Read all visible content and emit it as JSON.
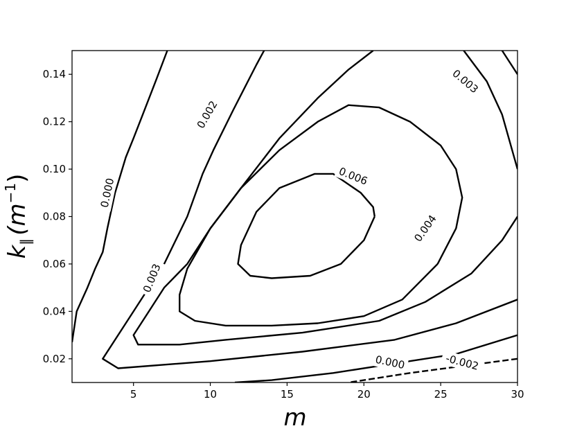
{
  "chart_data": {
    "type": "contour",
    "xlabel": "m",
    "ylabel_main": "k",
    "ylabel_sub": "∥",
    "ylabel_paren": "(m",
    "ylabel_sup": "−1",
    "ylabel_close": ")",
    "xlim": [
      1,
      30
    ],
    "ylim": [
      0.01,
      0.15
    ],
    "xticks": [
      5,
      10,
      15,
      20,
      25,
      30
    ],
    "xtick_labels": [
      "5",
      "10",
      "15",
      "20",
      "25",
      "30"
    ],
    "yticks": [
      0.02,
      0.04,
      0.06,
      0.08,
      0.1,
      0.12,
      0.14
    ],
    "ytick_labels": [
      "0.02",
      "0.04",
      "0.06",
      "0.08",
      "0.10",
      "0.12",
      "0.14"
    ],
    "grid": false,
    "contours": [
      {
        "level": "0.006",
        "dashed": false,
        "points": [
          [
            20.7,
            0.08
          ],
          [
            20.6,
            0.084
          ],
          [
            19.8,
            0.09
          ],
          [
            18.0,
            0.098
          ],
          [
            16.8,
            0.098
          ],
          [
            14.5,
            0.092
          ],
          [
            13.0,
            0.082
          ],
          [
            12.0,
            0.068
          ],
          [
            11.8,
            0.06
          ],
          [
            12.6,
            0.055
          ],
          [
            14.0,
            0.054
          ],
          [
            16.5,
            0.055
          ],
          [
            18.5,
            0.06
          ],
          [
            20.0,
            0.07
          ],
          [
            20.7,
            0.08
          ]
        ],
        "label_at": [
          19.3,
          0.097
        ],
        "label_angle": 22
      },
      {
        "level": "0.004",
        "dashed": false,
        "points": [
          [
            24.8,
            0.06
          ],
          [
            26.0,
            0.075
          ],
          [
            26.4,
            0.088
          ],
          [
            26.0,
            0.1
          ],
          [
            25.0,
            0.11
          ],
          [
            23.0,
            0.12
          ],
          [
            21.0,
            0.126
          ],
          [
            19.0,
            0.127
          ],
          [
            17.0,
            0.12
          ],
          [
            14.5,
            0.108
          ],
          [
            12.0,
            0.092
          ],
          [
            10.0,
            0.075
          ],
          [
            8.5,
            0.058
          ],
          [
            8.0,
            0.047
          ],
          [
            8.0,
            0.04
          ],
          [
            9.0,
            0.036
          ],
          [
            11.0,
            0.034
          ],
          [
            14.0,
            0.034
          ],
          [
            17.0,
            0.035
          ],
          [
            20.0,
            0.038
          ],
          [
            22.5,
            0.045
          ],
          [
            24.8,
            0.06
          ]
        ],
        "label_at": [
          24.0,
          0.075
        ],
        "label_angle": -55
      },
      {
        "level": "0.003",
        "dashed": false,
        "points": [
          [
            30.0,
            0.08
          ],
          [
            29.0,
            0.07
          ],
          [
            27.0,
            0.056
          ],
          [
            24.0,
            0.044
          ],
          [
            21.0,
            0.036
          ],
          [
            16.0,
            0.031
          ],
          [
            11.0,
            0.028
          ],
          [
            8.0,
            0.026
          ],
          [
            5.3,
            0.026
          ],
          [
            5.0,
            0.03
          ],
          [
            6.0,
            0.04
          ],
          [
            7.0,
            0.05
          ],
          [
            8.5,
            0.06
          ],
          [
            10.0,
            0.075
          ],
          [
            12.0,
            0.092
          ],
          [
            14.5,
            0.113
          ],
          [
            17.0,
            0.13
          ],
          [
            19.0,
            0.142
          ],
          [
            20.6,
            0.15
          ]
        ],
        "label_at": [
          6.2,
          0.054
        ],
        "label_angle": -68
      },
      {
        "level": "0.003",
        "dashed": false,
        "points": [
          [
            26.5,
            0.15
          ],
          [
            28.0,
            0.137
          ],
          [
            29.0,
            0.123
          ],
          [
            30.0,
            0.1
          ]
        ],
        "label_at": [
          26.6,
          0.137
        ],
        "label_angle": 40
      },
      {
        "level": "0.003",
        "dashed": false,
        "points": [
          [
            30.0,
            0.14
          ],
          [
            29.5,
            0.145
          ],
          [
            29.0,
            0.15
          ]
        ],
        "label_at": null,
        "label_angle": 0
      },
      {
        "level": "0.002",
        "dashed": false,
        "points": [
          [
            30.0,
            0.045
          ],
          [
            26.0,
            0.035
          ],
          [
            22.0,
            0.028
          ],
          [
            16.0,
            0.023
          ],
          [
            10.0,
            0.019
          ],
          [
            4.0,
            0.016
          ],
          [
            3.0,
            0.02
          ],
          [
            5.0,
            0.04
          ],
          [
            7.0,
            0.06
          ],
          [
            8.5,
            0.08
          ],
          [
            9.5,
            0.098
          ],
          [
            10.2,
            0.108
          ],
          [
            11.5,
            0.125
          ],
          [
            13.0,
            0.144
          ],
          [
            13.5,
            0.15
          ]
        ],
        "label_at": [
          9.8,
          0.123
        ],
        "label_angle": -60
      },
      {
        "level": "0.000",
        "dashed": false,
        "points": [
          [
            30.0,
            0.03
          ],
          [
            26.0,
            0.022
          ],
          [
            22.0,
            0.018
          ],
          [
            18.0,
            0.014
          ],
          [
            14.0,
            0.011
          ],
          [
            11.6,
            0.01
          ]
        ],
        "label_at": [
          21.7,
          0.0185
        ],
        "label_angle": 12
      },
      {
        "level": "0.000",
        "dashed": false,
        "points": [
          [
            1.0,
            0.027
          ],
          [
            1.3,
            0.04
          ],
          [
            2.0,
            0.05
          ],
          [
            2.5,
            0.058
          ],
          [
            3.0,
            0.065
          ],
          [
            3.3,
            0.075
          ],
          [
            3.8,
            0.09
          ],
          [
            4.5,
            0.105
          ],
          [
            5.0,
            0.113
          ],
          [
            5.6,
            0.123
          ],
          [
            6.5,
            0.138
          ],
          [
            7.2,
            0.15
          ]
        ],
        "label_at": [
          3.3,
          0.09
        ],
        "label_angle": -78
      },
      {
        "level": "-0.002",
        "dashed": true,
        "points": [
          [
            30.0,
            0.02
          ],
          [
            26.5,
            0.017
          ],
          [
            23.0,
            0.014
          ],
          [
            20.0,
            0.011
          ],
          [
            19.0,
            0.01
          ]
        ],
        "label_at": [
          26.4,
          0.0185
        ],
        "label_angle": 15
      }
    ]
  }
}
